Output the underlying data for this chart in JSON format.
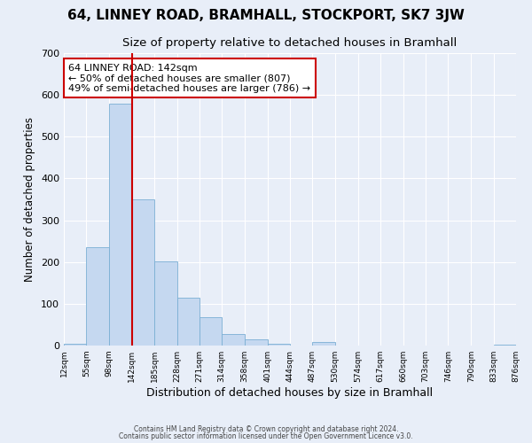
{
  "title": "64, LINNEY ROAD, BRAMHALL, STOCKPORT, SK7 3JW",
  "subtitle": "Size of property relative to detached houses in Bramhall",
  "xlabel": "Distribution of detached houses by size in Bramhall",
  "ylabel": "Number of detached properties",
  "bin_edges": [
    12,
    55,
    98,
    142,
    185,
    228,
    271,
    314,
    358,
    401,
    444,
    487,
    530,
    574,
    617,
    660,
    703,
    746,
    790,
    833,
    876
  ],
  "bar_heights": [
    5,
    235,
    580,
    350,
    202,
    115,
    68,
    27,
    14,
    5,
    0,
    8,
    0,
    0,
    0,
    0,
    0,
    0,
    0,
    3
  ],
  "bar_color": "#c5d8f0",
  "bar_edge_color": "#7bafd4",
  "vline_x": 142,
  "vline_color": "#cc0000",
  "annotation_text": "64 LINNEY ROAD: 142sqm\n← 50% of detached houses are smaller (807)\n49% of semi-detached houses are larger (786) →",
  "annotation_box_color": "#ffffff",
  "annotation_box_edge": "#cc0000",
  "ylim": [
    0,
    700
  ],
  "yticks": [
    0,
    100,
    200,
    300,
    400,
    500,
    600,
    700
  ],
  "background_color": "#e8eef8",
  "plot_bg_color": "#e8eef8",
  "footer_line1": "Contains HM Land Registry data © Crown copyright and database right 2024.",
  "footer_line2": "Contains public sector information licensed under the Open Government Licence v3.0.",
  "title_fontsize": 11,
  "subtitle_fontsize": 9.5,
  "xlabel_fontsize": 9,
  "ylabel_fontsize": 8.5
}
